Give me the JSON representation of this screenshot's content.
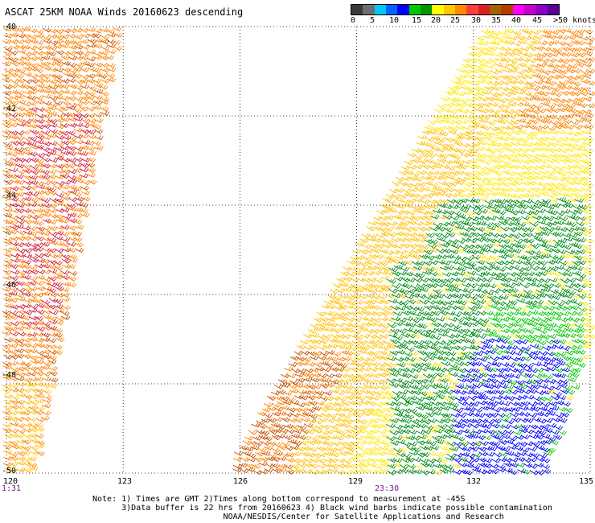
{
  "title": "ASCAT 25KM NOAA Winds 20160623 descending",
  "legend": {
    "labels": [
      "0",
      "5",
      "10",
      "15",
      "20",
      "25",
      "30",
      "35",
      "40",
      "45",
      ">50 knots"
    ],
    "colors": [
      "#3a3a3a",
      "#6e6e6e",
      "#00c8ff",
      "#0064ff",
      "#0000ff",
      "#00c800",
      "#009600",
      "#ffff00",
      "#ffc800",
      "#ff8c00",
      "#ff3c3c",
      "#dc1e1e",
      "#a06400",
      "#b43c00",
      "#ff00ff",
      "#c800c8",
      "#8c00c8",
      "#5a0096"
    ]
  },
  "map": {
    "lat_labels": [
      "-40",
      "-42",
      "-44",
      "-46",
      "-48",
      "-50"
    ],
    "lon_labels": [
      "120",
      "123",
      "126",
      "129",
      "132",
      "135"
    ],
    "time_labels": [
      "1:31",
      "23:30"
    ]
  },
  "notes": [
    "Note: 1) Times are GMT 2)Times along bottom correspond to measurement at -45S",
    "      3)Data buffer is 22 hrs from 20160623 4) Black wind barbs indicate possible contamination",
    "                           NOAA/NESDIS/Center for Satellite Applications and Research"
  ]
}
